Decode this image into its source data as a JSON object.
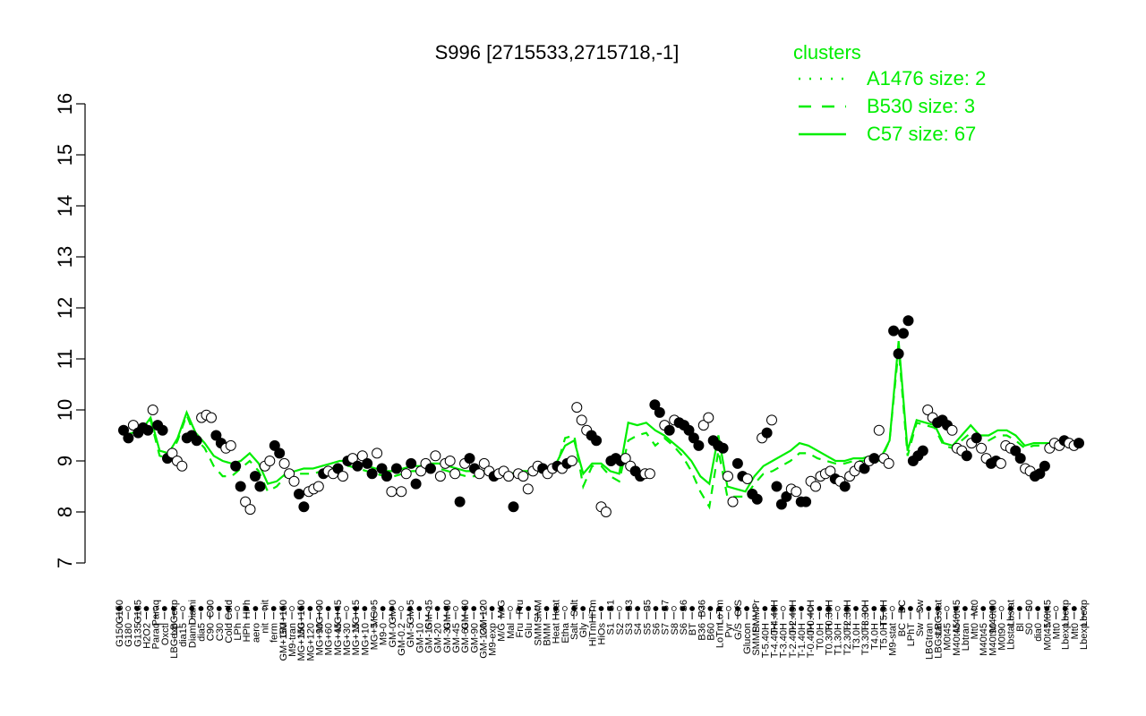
{
  "chart_data": {
    "type": "line",
    "title": "S996 [2715533,2715718,-1]",
    "xlabel": "",
    "ylabel": "",
    "ylim": [
      7,
      16
    ],
    "yticks": [
      7,
      8,
      9,
      10,
      11,
      12,
      13,
      14,
      15,
      16
    ],
    "x_tick_labels": [
      "G150",
      "G180",
      "G135",
      "H2O2",
      "Paraq",
      "Oxctl",
      "LBGexp",
      "dia15",
      "Diami",
      "dia5",
      "C90",
      "C30",
      "Cold",
      "LPh",
      "HPh",
      "aero",
      "nit",
      "ferm",
      "GM+150",
      "M9-tran",
      "MG+150",
      "MG+120",
      "MG+90",
      "MG+60",
      "MG+45",
      "MG+30",
      "MG+15",
      "MG+10",
      "MG+5",
      "M9-0",
      "GM-0",
      "GM-0.2",
      "GM-5",
      "GM-10",
      "GM-15",
      "GM-20",
      "GM-30",
      "GM-45",
      "GM-60",
      "GM-90",
      "GM-120",
      "M9-exp",
      "M/G",
      "Mal",
      "Fru",
      "Glu",
      "SMM",
      "BMM",
      "Heat",
      "Etha",
      "Salt",
      "Gly",
      "HiTm",
      "HiOs",
      "S1",
      "S2",
      "S3",
      "S4",
      "S5",
      "S6",
      "S7",
      "S8",
      "S6",
      "BT",
      "B36",
      "B60",
      "LoTm",
      "Pyr",
      "G/S",
      "Glucon",
      "SMMPr",
      "T-5.40H",
      "T-4.40H",
      "T-3.40H",
      "T-2.40H",
      "T-1.40H",
      "T-0.40H",
      "T0.0H",
      "T0.30H",
      "T1.30H",
      "T2.30H",
      "T3.0H",
      "T3.30H",
      "T4.0H",
      "T5.0H",
      "M9-stat",
      "BC",
      "LPhT",
      "Sw",
      "LBGtran",
      "LBGstat",
      "M0t45",
      "M40t45",
      "Lbtran",
      "Mt0",
      "M40t45",
      "M40t90",
      "M0t90",
      "Lbstat",
      "Bl",
      "S0",
      "dia0",
      "M0t45",
      "Mt0",
      "Lbexp",
      "Mt0",
      "Lbexp"
    ],
    "series": [
      {
        "name": "C57 size: 67",
        "style": "solid",
        "color": "#00ee00",
        "values": [
          9.5,
          9.55,
          9.6,
          9.85,
          9.2,
          9.15,
          9.45,
          9.95,
          9.55,
          9.35,
          9.1,
          9.0,
          8.95,
          9.0,
          9.15,
          8.95,
          8.55,
          8.6,
          8.75,
          8.8,
          8.85,
          8.85,
          8.9,
          8.95,
          9.0,
          9.0,
          8.95,
          8.9,
          8.85,
          8.8,
          8.8,
          8.85,
          8.9,
          8.9,
          8.95,
          8.95,
          8.9,
          8.85,
          8.8,
          8.8,
          8.8,
          8.8,
          8.75,
          8.75,
          8.8,
          8.8,
          8.85,
          8.85,
          8.95,
          9.3,
          9.4,
          8.75,
          8.95,
          8.95,
          8.8,
          8.75,
          9.75,
          9.7,
          9.75,
          9.6,
          9.5,
          9.35,
          9.2,
          9.0,
          8.7,
          8.55,
          9.5,
          8.5,
          8.45,
          8.4,
          8.7,
          8.9,
          9.0,
          9.1,
          9.2,
          9.35,
          9.3,
          9.2,
          9.1,
          9.0,
          9.0,
          9.05,
          9.05,
          9.1,
          9.05,
          9.4,
          11.35,
          9.2,
          9.8,
          9.75,
          9.7,
          9.35,
          9.3,
          9.5,
          9.7,
          9.5,
          9.5,
          9.6,
          9.6,
          9.5,
          9.3,
          9.35,
          9.35,
          9.35,
          9.35,
          9.35,
          9.35
        ]
      },
      {
        "name": "B530 size: 3",
        "style": "dashed",
        "color": "#00ee00",
        "values": [
          9.5,
          9.5,
          9.55,
          9.8,
          9.1,
          9.05,
          9.4,
          9.9,
          9.45,
          9.25,
          8.9,
          8.7,
          8.7,
          8.85,
          9.0,
          8.8,
          8.4,
          8.5,
          8.7,
          8.75,
          8.75,
          8.75,
          8.8,
          8.85,
          8.9,
          8.9,
          8.85,
          8.8,
          8.75,
          8.7,
          8.7,
          8.75,
          8.8,
          8.8,
          8.85,
          8.85,
          8.8,
          8.75,
          8.7,
          8.7,
          8.7,
          8.7,
          8.65,
          8.7,
          8.7,
          8.75,
          8.8,
          8.8,
          8.85,
          9.45,
          9.5,
          8.5,
          8.9,
          8.9,
          8.7,
          8.6,
          9.4,
          9.5,
          9.55,
          9.3,
          9.45,
          9.3,
          9.1,
          8.8,
          8.4,
          8.1,
          9.2,
          8.3,
          8.3,
          8.3,
          8.55,
          8.75,
          8.8,
          8.9,
          9.0,
          9.15,
          9.15,
          9.05,
          9.0,
          8.95,
          8.95,
          9.0,
          9.0,
          9.05,
          9.0,
          9.4,
          11.2,
          9.1,
          9.75,
          9.7,
          9.65,
          9.3,
          9.25,
          9.4,
          9.55,
          9.4,
          9.4,
          9.5,
          9.5,
          9.4,
          9.25,
          9.3,
          9.3,
          9.3,
          9.3,
          9.3,
          9.3
        ]
      },
      {
        "name": "A1476 size: 2",
        "style": "dotted",
        "color": "#00ee00",
        "values": []
      }
    ],
    "points": [
      {
        "y": 9.6,
        "filled": true
      },
      {
        "y": 9.45,
        "filled": true
      },
      {
        "y": 9.7,
        "filled": false
      },
      {
        "y": 9.55,
        "filled": true
      },
      {
        "y": 9.65,
        "filled": true
      },
      {
        "y": 9.6,
        "filled": true
      },
      {
        "y": 10.0,
        "filled": false
      },
      {
        "y": 9.7,
        "filled": true
      },
      {
        "y": 9.6,
        "filled": true
      },
      {
        "y": 9.05,
        "filled": true
      },
      {
        "y": 9.15,
        "filled": false
      },
      {
        "y": 9.0,
        "filled": false
      },
      {
        "y": 8.9,
        "filled": false
      },
      {
        "y": 9.45,
        "filled": true
      },
      {
        "y": 9.5,
        "filled": true
      },
      {
        "y": 9.4,
        "filled": true
      },
      {
        "y": 9.85,
        "filled": false
      },
      {
        "y": 9.9,
        "filled": false
      },
      {
        "y": 9.85,
        "filled": false
      },
      {
        "y": 9.5,
        "filled": true
      },
      {
        "y": 9.35,
        "filled": true
      },
      {
        "y": 9.25,
        "filled": false
      },
      {
        "y": 9.3,
        "filled": false
      },
      {
        "y": 8.9,
        "filled": true
      },
      {
        "y": 8.5,
        "filled": true
      },
      {
        "y": 8.2,
        "filled": false
      },
      {
        "y": 8.05,
        "filled": false
      },
      {
        "y": 8.7,
        "filled": true
      },
      {
        "y": 8.5,
        "filled": true
      },
      {
        "y": 8.9,
        "filled": false
      },
      {
        "y": 9.0,
        "filled": false
      },
      {
        "y": 9.3,
        "filled": true
      },
      {
        "y": 9.15,
        "filled": true
      },
      {
        "y": 8.95,
        "filled": false
      },
      {
        "y": 8.75,
        "filled": false
      },
      {
        "y": 8.6,
        "filled": false
      },
      {
        "y": 8.35,
        "filled": true
      },
      {
        "y": 8.1,
        "filled": true
      },
      {
        "y": 8.4,
        "filled": false
      },
      {
        "y": 8.45,
        "filled": false
      },
      {
        "y": 8.5,
        "filled": false
      },
      {
        "y": 8.75,
        "filled": true
      },
      {
        "y": 8.8,
        "filled": false
      },
      {
        "y": 8.75,
        "filled": false
      },
      {
        "y": 8.85,
        "filled": true
      },
      {
        "y": 8.7,
        "filled": false
      },
      {
        "y": 9.0,
        "filled": true
      },
      {
        "y": 9.05,
        "filled": false
      },
      {
        "y": 8.9,
        "filled": true
      },
      {
        "y": 9.1,
        "filled": false
      },
      {
        "y": 8.95,
        "filled": true
      },
      {
        "y": 8.75,
        "filled": true
      },
      {
        "y": 9.15,
        "filled": false
      },
      {
        "y": 8.85,
        "filled": true
      },
      {
        "y": 8.7,
        "filled": true
      },
      {
        "y": 8.4,
        "filled": false
      },
      {
        "y": 8.85,
        "filled": true
      },
      {
        "y": 8.4,
        "filled": false
      },
      {
        "y": 8.75,
        "filled": false
      },
      {
        "y": 8.95,
        "filled": true
      },
      {
        "y": 8.55,
        "filled": true
      },
      {
        "y": 8.8,
        "filled": false
      },
      {
        "y": 8.95,
        "filled": false
      },
      {
        "y": 8.85,
        "filled": true
      },
      {
        "y": 9.1,
        "filled": false
      },
      {
        "y": 8.7,
        "filled": false
      },
      {
        "y": 8.95,
        "filled": false
      },
      {
        "y": 9.0,
        "filled": false
      },
      {
        "y": 8.75,
        "filled": false
      },
      {
        "y": 8.2,
        "filled": true
      },
      {
        "y": 8.95,
        "filled": false
      },
      {
        "y": 9.05,
        "filled": true
      },
      {
        "y": 8.85,
        "filled": true
      },
      {
        "y": 8.75,
        "filled": false
      },
      {
        "y": 8.95,
        "filled": false
      },
      {
        "y": 8.8,
        "filled": false
      },
      {
        "y": 8.7,
        "filled": true
      },
      {
        "y": 8.75,
        "filled": false
      },
      {
        "y": 8.8,
        "filled": false
      },
      {
        "y": 8.7,
        "filled": false
      },
      {
        "y": 8.1,
        "filled": true
      },
      {
        "y": 8.75,
        "filled": false
      },
      {
        "y": 8.7,
        "filled": false
      },
      {
        "y": 8.45,
        "filled": false
      },
      {
        "y": 8.8,
        "filled": false
      },
      {
        "y": 8.9,
        "filled": false
      },
      {
        "y": 8.85,
        "filled": true
      },
      {
        "y": 8.75,
        "filled": false
      },
      {
        "y": 8.85,
        "filled": false
      },
      {
        "y": 8.9,
        "filled": true
      },
      {
        "y": 8.85,
        "filled": false
      },
      {
        "y": 8.95,
        "filled": true
      },
      {
        "y": 9.0,
        "filled": false
      },
      {
        "y": 10.05,
        "filled": false
      },
      {
        "y": 9.8,
        "filled": false
      },
      {
        "y": 9.6,
        "filled": false
      },
      {
        "y": 9.5,
        "filled": true
      },
      {
        "y": 9.4,
        "filled": true
      },
      {
        "y": 8.1,
        "filled": false
      },
      {
        "y": 8.0,
        "filled": false
      },
      {
        "y": 9.0,
        "filled": true
      },
      {
        "y": 9.05,
        "filled": true
      },
      {
        "y": 9.0,
        "filled": true
      },
      {
        "y": 9.05,
        "filled": false
      },
      {
        "y": 8.9,
        "filled": false
      },
      {
        "y": 8.8,
        "filled": true
      },
      {
        "y": 8.7,
        "filled": true
      },
      {
        "y": 8.75,
        "filled": false
      },
      {
        "y": 8.75,
        "filled": false
      },
      {
        "y": 10.1,
        "filled": true
      },
      {
        "y": 9.95,
        "filled": true
      },
      {
        "y": 9.7,
        "filled": false
      },
      {
        "y": 9.6,
        "filled": true
      },
      {
        "y": 9.8,
        "filled": false
      },
      {
        "y": 9.75,
        "filled": true
      },
      {
        "y": 9.7,
        "filled": true
      },
      {
        "y": 9.6,
        "filled": true
      },
      {
        "y": 9.45,
        "filled": true
      },
      {
        "y": 9.3,
        "filled": true
      },
      {
        "y": 9.7,
        "filled": false
      },
      {
        "y": 9.85,
        "filled": false
      },
      {
        "y": 9.4,
        "filled": true
      },
      {
        "y": 9.3,
        "filled": true
      },
      {
        "y": 9.25,
        "filled": true
      },
      {
        "y": 8.7,
        "filled": false
      },
      {
        "y": 8.2,
        "filled": false
      },
      {
        "y": 8.95,
        "filled": true
      },
      {
        "y": 8.7,
        "filled": true
      },
      {
        "y": 8.65,
        "filled": false
      },
      {
        "y": 8.35,
        "filled": true
      },
      {
        "y": 8.25,
        "filled": true
      },
      {
        "y": 9.45,
        "filled": false
      },
      {
        "y": 9.55,
        "filled": true
      },
      {
        "y": 9.8,
        "filled": false
      },
      {
        "y": 8.5,
        "filled": true
      },
      {
        "y": 8.15,
        "filled": true
      },
      {
        "y": 8.3,
        "filled": true
      },
      {
        "y": 8.45,
        "filled": false
      },
      {
        "y": 8.4,
        "filled": false
      },
      {
        "y": 8.2,
        "filled": true
      },
      {
        "y": 8.2,
        "filled": true
      },
      {
        "y": 8.6,
        "filled": false
      },
      {
        "y": 8.5,
        "filled": false
      },
      {
        "y": 8.7,
        "filled": false
      },
      {
        "y": 8.75,
        "filled": false
      },
      {
        "y": 8.8,
        "filled": false
      },
      {
        "y": 8.65,
        "filled": true
      },
      {
        "y": 8.6,
        "filled": false
      },
      {
        "y": 8.5,
        "filled": true
      },
      {
        "y": 8.7,
        "filled": false
      },
      {
        "y": 8.8,
        "filled": false
      },
      {
        "y": 8.9,
        "filled": false
      },
      {
        "y": 8.85,
        "filled": true
      },
      {
        "y": 9.0,
        "filled": false
      },
      {
        "y": 9.05,
        "filled": true
      },
      {
        "y": 9.6,
        "filled": false
      },
      {
        "y": 9.05,
        "filled": false
      },
      {
        "y": 8.95,
        "filled": false
      },
      {
        "y": 11.55,
        "filled": true
      },
      {
        "y": 11.1,
        "filled": true
      },
      {
        "y": 11.5,
        "filled": true
      },
      {
        "y": 11.75,
        "filled": true
      },
      {
        "y": 9.0,
        "filled": true
      },
      {
        "y": 9.1,
        "filled": true
      },
      {
        "y": 9.2,
        "filled": true
      },
      {
        "y": 10.0,
        "filled": false
      },
      {
        "y": 9.85,
        "filled": false
      },
      {
        "y": 9.75,
        "filled": true
      },
      {
        "y": 9.8,
        "filled": true
      },
      {
        "y": 9.7,
        "filled": true
      },
      {
        "y": 9.6,
        "filled": false
      },
      {
        "y": 9.25,
        "filled": false
      },
      {
        "y": 9.2,
        "filled": false
      },
      {
        "y": 9.1,
        "filled": true
      },
      {
        "y": 9.35,
        "filled": false
      },
      {
        "y": 9.45,
        "filled": true
      },
      {
        "y": 9.25,
        "filled": false
      },
      {
        "y": 9.05,
        "filled": false
      },
      {
        "y": 8.95,
        "filled": true
      },
      {
        "y": 9.0,
        "filled": true
      },
      {
        "y": 8.95,
        "filled": false
      },
      {
        "y": 9.3,
        "filled": false
      },
      {
        "y": 9.25,
        "filled": false
      },
      {
        "y": 9.2,
        "filled": true
      },
      {
        "y": 9.05,
        "filled": true
      },
      {
        "y": 8.85,
        "filled": false
      },
      {
        "y": 8.8,
        "filled": false
      },
      {
        "y": 8.7,
        "filled": true
      },
      {
        "y": 8.75,
        "filled": true
      },
      {
        "y": 8.9,
        "filled": true
      },
      {
        "y": 9.25,
        "filled": false
      },
      {
        "y": 9.35,
        "filled": false
      },
      {
        "y": 9.3,
        "filled": false
      },
      {
        "y": 9.4,
        "filled": true
      },
      {
        "y": 9.35,
        "filled": false
      },
      {
        "y": 9.3,
        "filled": false
      },
      {
        "y": 9.35,
        "filled": true
      }
    ],
    "legend": {
      "title": "clusters",
      "position": "top-right",
      "entries": [
        {
          "label": "A1476 size: 2",
          "style": "dotted"
        },
        {
          "label": "B530 size: 3",
          "style": "dashed"
        },
        {
          "label": "C57 size: 67",
          "style": "solid"
        }
      ]
    },
    "grid": false,
    "colors": {
      "series": "#00ee00",
      "points_fill": "#000000",
      "points_open": "#ffffff",
      "axis": "#000000"
    }
  }
}
